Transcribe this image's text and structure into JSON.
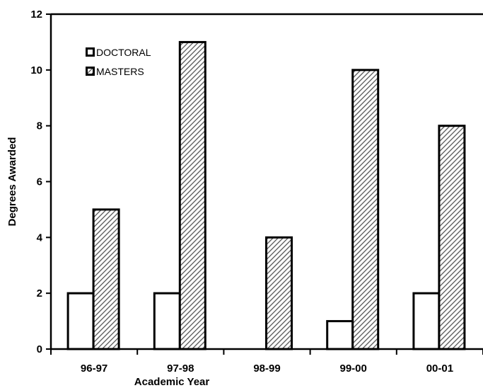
{
  "chart_data": {
    "type": "bar",
    "title": "",
    "xlabel": "Academic Year",
    "ylabel": "Degrees Awarded",
    "categories": [
      "96-97",
      "97-98",
      "98-99",
      "99-00",
      "00-01"
    ],
    "series": [
      {
        "name": "DOCTORAL",
        "values": [
          2,
          2,
          0,
          1,
          2
        ],
        "fill": "#ffffff",
        "pattern": "none"
      },
      {
        "name": "MASTERS",
        "values": [
          5,
          11,
          4,
          10,
          8
        ],
        "fill": "#ffffff",
        "pattern": "diagonal-hatch"
      }
    ],
    "ylim": [
      0,
      12
    ],
    "yticks": [
      "0",
      "2",
      "4",
      "6",
      "8",
      "10",
      "12"
    ],
    "grid": false,
    "legend_position": "top-left",
    "colors": {
      "bar_outline": "#000000",
      "hatch": "#555555",
      "background": "#ffffff"
    }
  }
}
